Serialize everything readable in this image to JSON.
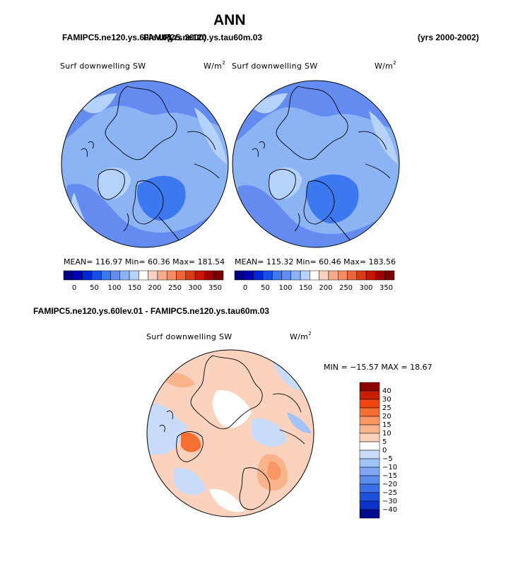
{
  "page": {
    "title": "ANN",
    "header_left_a": "FAMIPC5.ne120.ys.60lev.01",
    "header_left_b": "FAMIPC5.ne120.ys.tau60m.03",
    "header_left_c": "(yrs 2000)",
    "header_right": "(yrs 2000-2002)",
    "diff_header": "FAMIPC5.ne120.ys.60lev.01 - FAMIPC5.ne120.ys.tau60m.03"
  },
  "panels": [
    {
      "variable": "Surf downwelling SW",
      "units_base": "W/m",
      "units_exp": "2",
      "stats": "MEAN= 116.97   Min=   60.36   Max= 181.54"
    },
    {
      "variable": "Surf downwelling SW",
      "units_base": "W/m",
      "units_exp": "2",
      "stats": "MEAN= 115.32   Min=   60.46   Max= 183.56"
    }
  ],
  "diff_panel": {
    "variable": "Surf downwelling SW",
    "units_base": "W/m",
    "units_exp": "2",
    "stats": "MIN = −15.57 MAX =  18.67"
  },
  "colorbar_main": {
    "colors": [
      "#00007f",
      "#0000b4",
      "#0028d8",
      "#1450e6",
      "#3c78f0",
      "#648cf0",
      "#8cb4f5",
      "#b4d2fa",
      "#ffffff",
      "#fad2c3",
      "#faaa8c",
      "#f58c64",
      "#f0643c",
      "#dc3c14",
      "#c81400",
      "#a00000",
      "#780000"
    ],
    "tick_labels": [
      "0",
      "50",
      "100",
      "150",
      "200",
      "250",
      "300",
      "350"
    ]
  },
  "colorbar_diff": {
    "colors_top_to_bottom": [
      "#8c0000",
      "#c81e00",
      "#f04614",
      "#f56e32",
      "#fa9664",
      "#fab48c",
      "#fad2be",
      "#ffffff",
      "#c8dcfa",
      "#a0c3fa",
      "#82a5f5",
      "#5a8cf0",
      "#3c6ee6",
      "#1e50dc",
      "#0a32c8",
      "#000a8c"
    ],
    "tick_labels": [
      "40",
      "30",
      "25",
      "20",
      "15",
      "10",
      "5",
      "0",
      "−5",
      "−10",
      "−15",
      "−20",
      "−25",
      "−30",
      "−40"
    ]
  }
}
